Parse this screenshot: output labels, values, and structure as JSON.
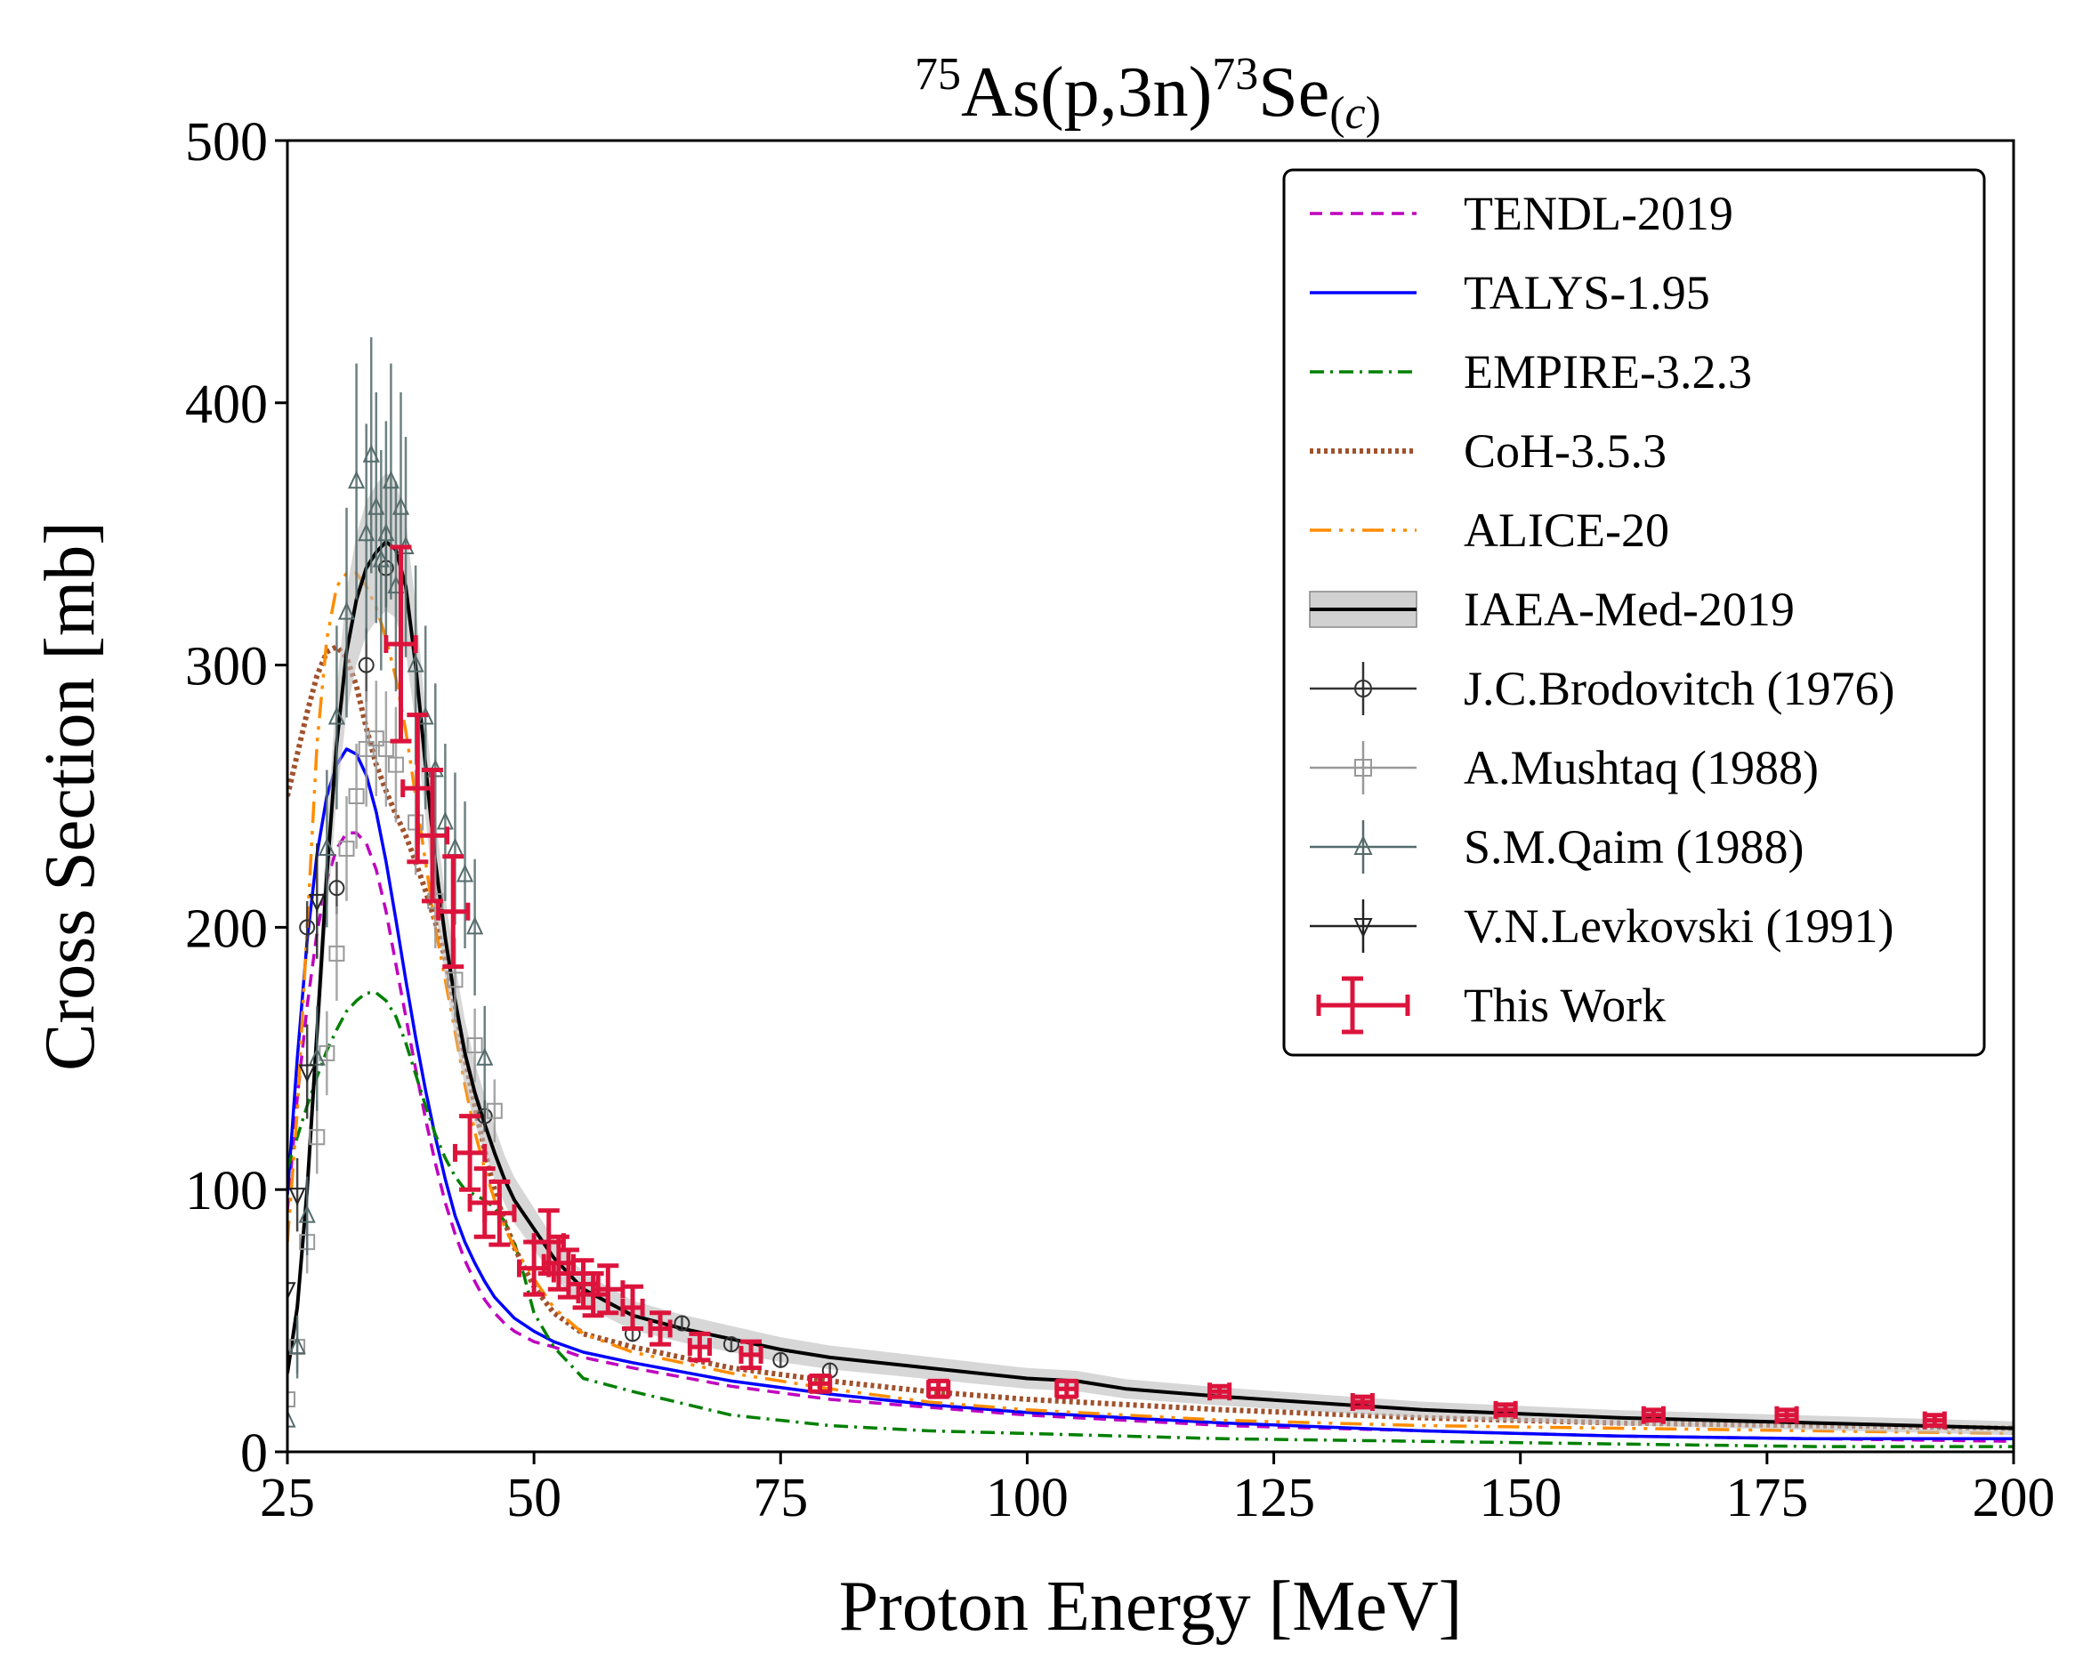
{
  "chart_data": {
    "type": "line",
    "title": {
      "target_mass": "75",
      "target": "As(p,3n)",
      "product_mass": "73",
      "product": "Se",
      "sub_open": "(",
      "sub_italic": "c",
      "sub_close": ")"
    },
    "xlabel": "Proton Energy [MeV]",
    "ylabel": "Cross Section [mb]",
    "xlim": [
      25,
      200
    ],
    "ylim": [
      0,
      500
    ],
    "xticks": [
      25,
      50,
      75,
      100,
      125,
      150,
      175,
      200
    ],
    "yticks": [
      0,
      100,
      200,
      300,
      400,
      500
    ],
    "legend_position": "top-right",
    "curves": [
      {
        "name": "TENDL-2019",
        "color": "#bf00bf",
        "dash": "14,9",
        "width": 3.5,
        "x": [
          25,
          26,
          27,
          28,
          29,
          30,
          31,
          32,
          33,
          34,
          35,
          36,
          37,
          38,
          39,
          40,
          41,
          42,
          43,
          44,
          45,
          46,
          47,
          48,
          50,
          52,
          55,
          60,
          70,
          80,
          90,
          100,
          120,
          140,
          160,
          180,
          200
        ],
        "y": [
          92,
          135,
          170,
          198,
          218,
          230,
          236,
          236,
          232,
          222,
          206,
          186,
          166,
          146,
          127,
          110,
          95,
          83,
          73,
          65,
          58,
          53,
          49,
          46,
          42,
          40,
          36,
          32,
          25,
          20,
          17,
          14,
          10,
          8,
          6,
          5,
          4
        ]
      },
      {
        "name": "TALYS-1.95",
        "color": "#0000ff",
        "dash": "",
        "width": 3.5,
        "x": [
          25,
          26,
          27,
          28,
          29,
          30,
          31,
          32,
          33,
          34,
          35,
          36,
          37,
          38,
          39,
          40,
          41,
          42,
          43,
          44,
          45,
          46,
          47,
          48,
          50,
          52,
          55,
          60,
          70,
          80,
          90,
          100,
          120,
          140,
          160,
          180,
          200
        ],
        "y": [
          98,
          150,
          195,
          228,
          250,
          262,
          268,
          266,
          258,
          244,
          225,
          203,
          180,
          158,
          138,
          120,
          104,
          90,
          80,
          72,
          65,
          59,
          55,
          51,
          46,
          42,
          38,
          34,
          27,
          22,
          18,
          15,
          11,
          8,
          6,
          5,
          5
        ]
      },
      {
        "name": "EMPIRE-3.2.3",
        "color": "#008000",
        "dash": "16,7,3,7",
        "width": 3.5,
        "x": [
          25,
          26,
          27,
          28,
          29,
          30,
          31,
          32,
          33,
          34,
          35,
          36,
          37,
          38,
          39,
          40,
          41,
          42,
          43,
          44,
          45,
          46,
          47,
          48,
          49,
          50,
          52,
          55,
          60,
          70,
          80,
          90,
          100,
          120,
          140,
          160,
          180,
          200
        ],
        "y": [
          108,
          120,
          132,
          143,
          153,
          161,
          168,
          172,
          175,
          175,
          172,
          166,
          156,
          144,
          132,
          121,
          112,
          105,
          100,
          98,
          96,
          93,
          88,
          80,
          67,
          53,
          40,
          28,
          23,
          14,
          10,
          8,
          7,
          5,
          4,
          3,
          2,
          2
        ]
      },
      {
        "name": "CoH-3.5.3",
        "color": "#a0522d",
        "dash": "4,4",
        "width": 6,
        "x": [
          25,
          26,
          27,
          28,
          29,
          30,
          31,
          32,
          33,
          34,
          35,
          36,
          37,
          38,
          39,
          40,
          41,
          42,
          43,
          44,
          45,
          46,
          47,
          48,
          50,
          52,
          55,
          60,
          70,
          80,
          90,
          100,
          120,
          140,
          160,
          180,
          200
        ],
        "y": [
          250,
          266,
          282,
          296,
          305,
          307,
          303,
          292,
          276,
          262,
          252,
          243,
          235,
          225,
          214,
          202,
          188,
          170,
          150,
          132,
          115,
          100,
          88,
          78,
          63,
          53,
          45,
          40,
          32,
          27,
          23,
          20,
          16,
          13,
          11,
          10,
          9
        ]
      },
      {
        "name": "ALICE-20",
        "color": "#ff8c00",
        "dash": "24,9,4,9,4,9",
        "width": 3.5,
        "x": [
          25,
          26,
          27,
          28,
          29,
          30,
          31,
          32,
          33,
          34,
          35,
          36,
          37,
          38,
          39,
          40,
          41,
          42,
          43,
          44,
          45,
          46,
          47,
          48,
          50,
          52,
          55,
          60,
          70,
          80,
          90,
          100,
          120,
          140,
          160,
          180,
          200
        ],
        "y": [
          80,
          130,
          200,
          270,
          310,
          330,
          335,
          335,
          330,
          322,
          310,
          295,
          275,
          250,
          225,
          200,
          180,
          160,
          140,
          122,
          108,
          96,
          86,
          78,
          66,
          55,
          45,
          38,
          30,
          24,
          19,
          16,
          12,
          10,
          9,
          8,
          7
        ]
      },
      {
        "name": "IAEA-Med-2019",
        "color": "#000000",
        "dash": "",
        "width": 4,
        "band": true,
        "x": [
          25,
          26,
          27,
          28,
          29,
          30,
          31,
          32,
          33,
          34,
          35,
          36,
          37,
          38,
          39,
          40,
          41,
          42,
          43,
          44,
          45,
          46,
          47,
          48,
          50,
          52,
          55,
          60,
          65,
          70,
          75,
          80,
          90,
          100,
          105,
          110,
          120,
          140,
          160,
          180,
          200
        ],
        "y": [
          30,
          55,
          100,
          160,
          220,
          270,
          305,
          325,
          337,
          343,
          347,
          344,
          330,
          300,
          262,
          225,
          196,
          172,
          152,
          137,
          125,
          114,
          104,
          96,
          85,
          74,
          62,
          52,
          47,
          43,
          39,
          36,
          32,
          28,
          27,
          24,
          21,
          16,
          13,
          11,
          9
        ]
      }
    ],
    "data_series": [
      {
        "name": "J.C.Brodovitch (1976)",
        "marker": "circle",
        "color": "#333333",
        "x": [
          27,
          30,
          33,
          35,
          45,
          60,
          65,
          70,
          75,
          80
        ],
        "y": [
          200,
          215,
          300,
          337,
          128,
          45,
          49,
          41,
          35,
          31
        ],
        "yerr": [
          10,
          10,
          14,
          15,
          6,
          3,
          3,
          3,
          3,
          3
        ]
      },
      {
        "name": "A.Mushtaq (1988)",
        "marker": "square",
        "color": "#999999",
        "x": [
          25,
          26,
          27,
          28,
          29,
          30,
          31,
          32,
          33,
          34,
          35,
          36,
          38,
          40,
          42,
          44,
          46
        ],
        "y": [
          20,
          40,
          80,
          120,
          152,
          190,
          230,
          250,
          268,
          272,
          268,
          262,
          240,
          210,
          180,
          155,
          130
        ],
        "yerr": [
          8,
          10,
          12,
          14,
          16,
          18,
          20,
          20,
          22,
          22,
          22,
          22,
          20,
          18,
          16,
          14,
          12
        ]
      },
      {
        "name": "S.M.Qaim (1988)",
        "marker": "triangle-up",
        "color": "#556b6b",
        "x": [
          25,
          26,
          27,
          28,
          29,
          30,
          31,
          32,
          33,
          33.5,
          34,
          34.5,
          35,
          35.5,
          36,
          36.5,
          37,
          38,
          39,
          40,
          41,
          42,
          43,
          44,
          45
        ],
        "y": [
          12,
          40,
          90,
          150,
          230,
          280,
          320,
          370,
          350,
          380,
          360,
          340,
          350,
          370,
          330,
          360,
          345,
          300,
          280,
          260,
          240,
          230,
          220,
          200,
          150
        ],
        "yerr": [
          10,
          12,
          15,
          20,
          30,
          35,
          40,
          45,
          42,
          45,
          44,
          42,
          43,
          45,
          40,
          44,
          42,
          38,
          35,
          33,
          30,
          29,
          28,
          26,
          20
        ]
      },
      {
        "name": "V.N.Levkovski (1991)",
        "marker": "triangle-down",
        "color": "#222222",
        "x": [
          25,
          26,
          27,
          28
        ],
        "y": [
          62,
          98,
          145,
          210
        ],
        "yerr": [
          10,
          14,
          18,
          22
        ]
      },
      {
        "name": "This Work",
        "marker": "errorbar",
        "color": "#dc143c",
        "x": [
          36.5,
          38.2,
          39.7,
          41.8,
          43.5,
          45,
          46.5,
          50,
          51.5,
          52.5,
          53.5,
          55,
          56,
          57.5,
          60,
          62.8,
          66.8,
          72,
          79,
          91,
          104,
          119.5,
          134,
          148.5,
          163.5,
          177,
          192
        ],
        "y": [
          308,
          253,
          235,
          206,
          114,
          95,
          91,
          70,
          80,
          72,
          68,
          64,
          60,
          62,
          55,
          47,
          40,
          37,
          26,
          24,
          24,
          23,
          19,
          16,
          14,
          14,
          12
        ],
        "yerr": [
          37,
          28,
          25,
          21,
          14,
          13,
          12,
          10,
          12,
          10,
          9,
          9,
          8,
          9,
          8,
          6,
          5,
          5,
          3,
          3,
          3,
          2,
          2,
          2,
          2,
          2,
          2
        ],
        "xerr": [
          1.5,
          1.5,
          1.5,
          1.5,
          1.5,
          1.5,
          1.5,
          1.5,
          1.5,
          1.5,
          1.5,
          1.5,
          1.5,
          1.5,
          1.0,
          1.0,
          1.0,
          1.0,
          1.0,
          1.0,
          1.0,
          1.0,
          1.0,
          1.0,
          1.0,
          1.0,
          1.0
        ]
      }
    ]
  }
}
